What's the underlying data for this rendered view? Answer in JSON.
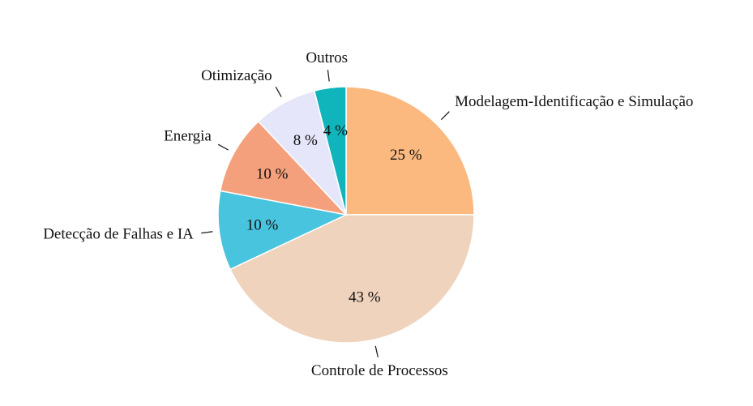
{
  "chart_data": {
    "type": "pie",
    "title": "",
    "start_angle_deg": 0,
    "direction": "clockwise",
    "slices": [
      {
        "label": "Modelagem-Identificação e Simulação",
        "value": 25,
        "value_label": "25 %",
        "color": "#fbb980"
      },
      {
        "label": "Controle de Processos",
        "value": 43,
        "value_label": "43 %",
        "color": "#efd3bd"
      },
      {
        "label": "Detecção de Falhas e IA",
        "value": 10,
        "value_label": "10 %",
        "color": "#48c4de"
      },
      {
        "label": "Energia",
        "value": 10,
        "value_label": "10 %",
        "color": "#f5a07c"
      },
      {
        "label": "Otimização",
        "value": 8,
        "value_label": "8 %",
        "color": "#e6e6fa"
      },
      {
        "label": "Outros",
        "value": 4,
        "value_label": "4 %",
        "color": "#0fb5bb"
      }
    ]
  }
}
